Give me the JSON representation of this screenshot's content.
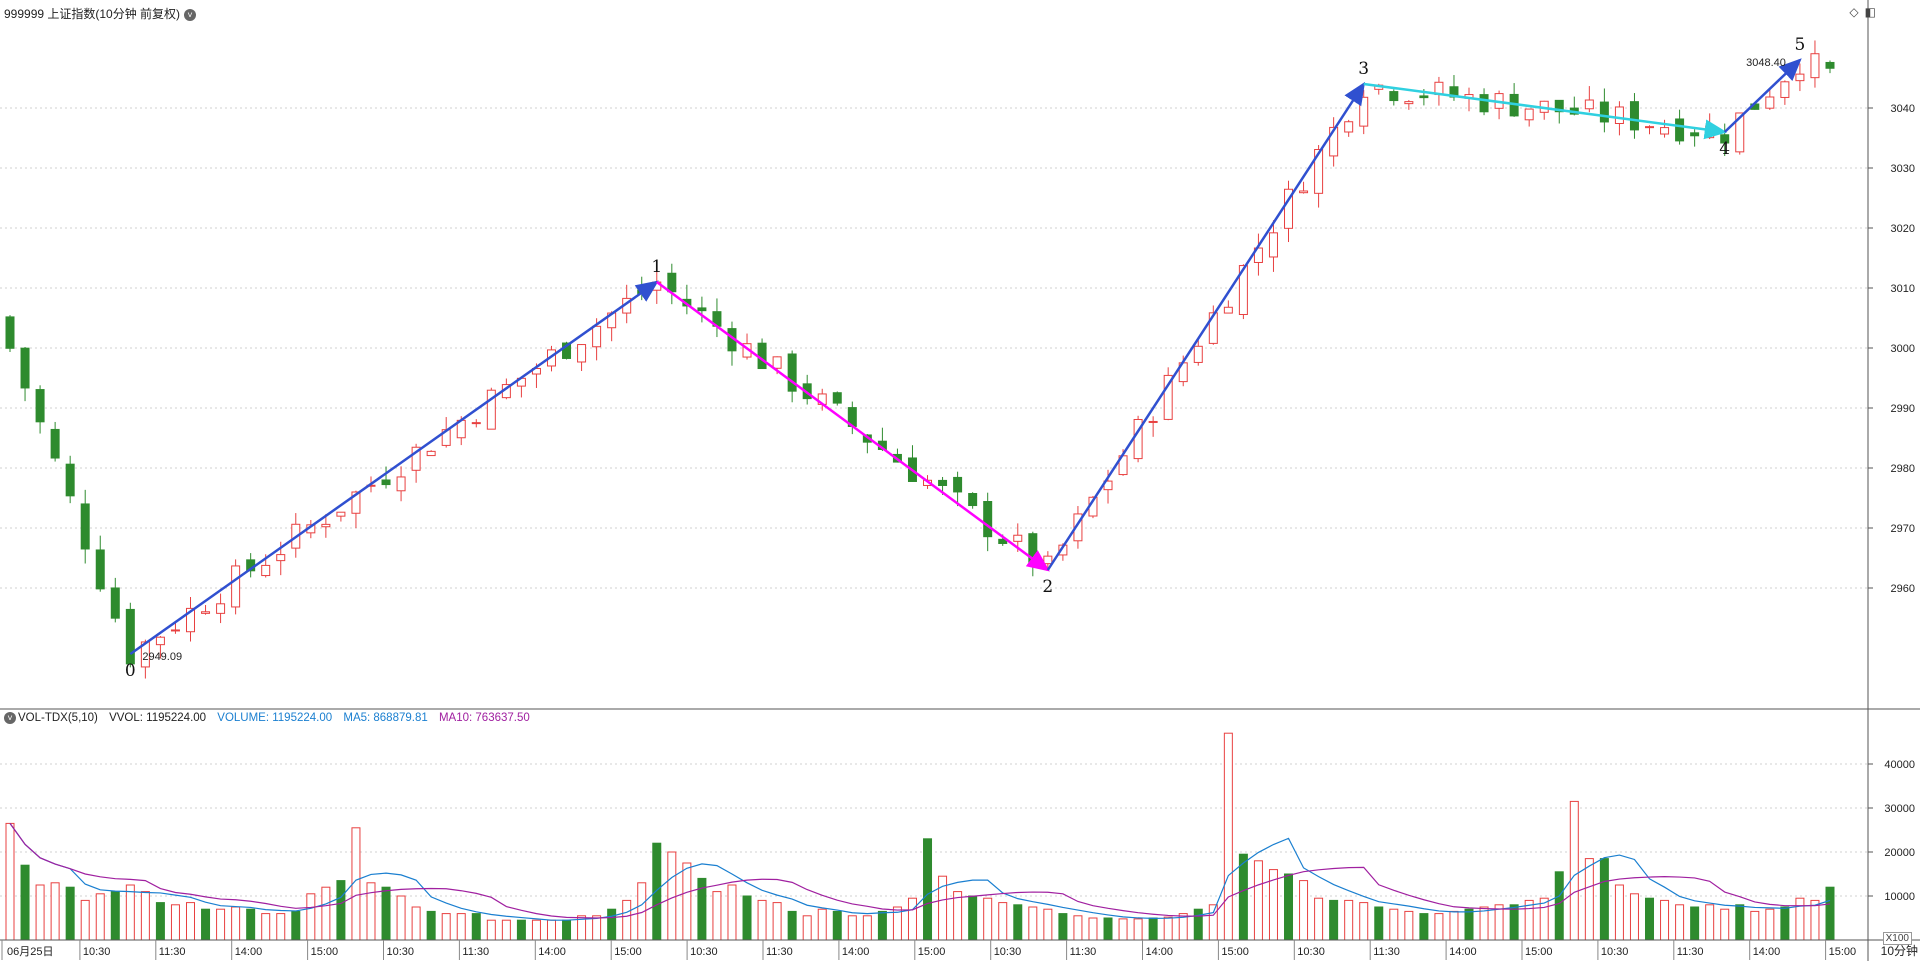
{
  "header": {
    "title": "999999 上证指数(10分钟 前复权)",
    "dropdown_icon": "chevron-down-icon",
    "tool_icons": [
      "diamond-icon",
      "window-icon"
    ]
  },
  "volume_header": {
    "indicator": "VOL-TDX(5,10)",
    "vvol": "VVOL: 1195224.00",
    "volume": "VOLUME: 1195224.00",
    "ma5": "MA5: 868879.81",
    "ma10": "MA10: 763637.50"
  },
  "colors": {
    "up": "#e84040",
    "down": "#2e8b2e",
    "wave": "#3050d0",
    "magenta": "#ff00ff",
    "cyan": "#30d0e0",
    "ma5": "#1a7fd0",
    "ma10": "#a020a0",
    "grid": "#d0d0d0"
  },
  "period_label": "10分钟",
  "volume_unit": "X100",
  "chart_data": [
    {
      "type": "candlestick",
      "ylim": [
        2940,
        3053
      ],
      "y_ticks": [
        2960,
        2970,
        2980,
        2990,
        3000,
        3010,
        3020,
        3030,
        3040
      ],
      "x_labels": [
        "06月25日",
        "10:30",
        "11:30",
        "14:00",
        "15:00",
        "10:30",
        "11:30",
        "14:00",
        "15:00",
        "10:30",
        "11:30",
        "14:00",
        "15:00",
        "10:30",
        "11:30",
        "14:00",
        "15:00",
        "10:30",
        "11:30",
        "14:00",
        "15:00",
        "10:30",
        "11:30",
        "14:00",
        "15:00"
      ],
      "grid": true,
      "annotations": {
        "low_price": "2949.09",
        "high_price": "3048.40",
        "wave_labels": [
          "0",
          "1",
          "2",
          "3",
          "4",
          "5"
        ]
      },
      "waves": [
        [
          8,
          2949
        ],
        [
          43,
          3011
        ],
        [
          69,
          2963
        ],
        [
          90,
          3044
        ],
        [
          114,
          3036
        ],
        [
          119,
          3048
        ]
      ]
    },
    {
      "type": "bar",
      "series": [
        {
          "name": "VOLUME",
          "values": [
            26500,
            17000,
            12500,
            13000,
            12000,
            9000,
            10500,
            11000,
            12500,
            11000,
            8500,
            8000,
            8500,
            7000,
            7000,
            7500,
            7000,
            6000,
            6000,
            6500,
            10500,
            12000,
            13500,
            25500,
            13000,
            12000,
            10000,
            7500,
            6500,
            6000,
            6000,
            6000,
            4500,
            4500,
            4500,
            4500,
            4500,
            4500,
            5500,
            5500,
            7000,
            9000,
            13000,
            22000,
            20000,
            17500,
            14000,
            11000,
            12500,
            10000,
            9000,
            8500,
            6500,
            5500,
            7000,
            6500,
            5500,
            5500,
            6500,
            7500,
            9500,
            23000,
            14500,
            11000,
            10000,
            9500,
            8500,
            8000,
            7500,
            7000,
            6000,
            5500,
            5000,
            5000,
            4800,
            4800,
            5000,
            5200,
            6000,
            7000,
            8000,
            47000,
            19500,
            18000,
            16000,
            15000,
            13500,
            9500,
            9000,
            9000,
            8500,
            7500,
            7000,
            6500,
            6000,
            6000,
            6500,
            7000,
            7500,
            8000,
            8000,
            9000,
            9500,
            15500,
            31500,
            18500,
            18500,
            12500,
            10500,
            9500,
            9000,
            8000,
            7500,
            8000,
            7000,
            8000,
            6500,
            7000,
            7500,
            9500,
            9000,
            12000
          ]
        }
      ],
      "y_ticks": [
        10000,
        20000,
        30000,
        40000
      ],
      "ylim": [
        0,
        50000
      ]
    }
  ]
}
